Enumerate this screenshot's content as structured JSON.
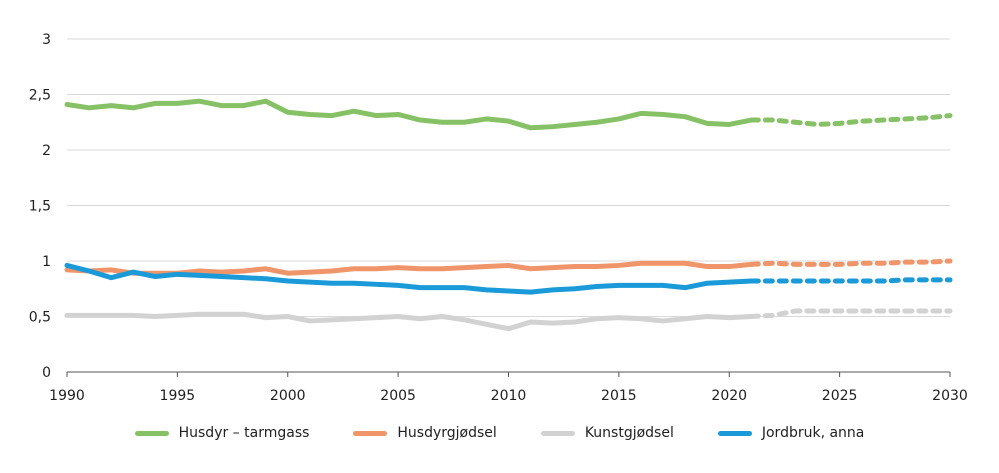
{
  "chart_data": {
    "type": "line",
    "title": "",
    "xlabel": "",
    "ylabel": "",
    "xlim": [
      1990,
      2030
    ],
    "ylim": [
      0,
      3
    ],
    "x_ticks": [
      "1990",
      "1995",
      "2000",
      "2005",
      "2010",
      "2015",
      "2020",
      "2025",
      "2030"
    ],
    "y_ticks": [
      "0",
      "0,5",
      "1",
      "1,5",
      "2",
      "2,5",
      "3"
    ],
    "grid": "horizontal",
    "legend_position": "bottom",
    "historical_years": [
      1990,
      1991,
      1992,
      1993,
      1994,
      1995,
      1996,
      1997,
      1998,
      1999,
      2000,
      2001,
      2002,
      2003,
      2004,
      2005,
      2006,
      2007,
      2008,
      2009,
      2010,
      2011,
      2012,
      2013,
      2014,
      2015,
      2016,
      2017,
      2018,
      2019,
      2020,
      2021
    ],
    "projection_years": [
      2021,
      2022,
      2023,
      2024,
      2025,
      2026,
      2027,
      2028,
      2029,
      2030
    ],
    "series": [
      {
        "name": "Husdyr – tarmgass",
        "color": "#86c166",
        "values": [
          2.41,
          2.38,
          2.4,
          2.38,
          2.42,
          2.42,
          2.44,
          2.4,
          2.4,
          2.44,
          2.34,
          2.32,
          2.31,
          2.35,
          2.31,
          2.32,
          2.27,
          2.25,
          2.25,
          2.28,
          2.26,
          2.2,
          2.21,
          2.23,
          2.25,
          2.28,
          2.33,
          2.32,
          2.3,
          2.24,
          2.23,
          2.27
        ],
        "projection": [
          2.27,
          2.27,
          2.25,
          2.23,
          2.24,
          2.26,
          2.27,
          2.28,
          2.29,
          2.31
        ]
      },
      {
        "name": "Husdyrgjødsel",
        "color": "#f0956a",
        "values": [
          0.92,
          0.91,
          0.92,
          0.89,
          0.89,
          0.89,
          0.91,
          0.9,
          0.91,
          0.93,
          0.89,
          0.9,
          0.91,
          0.93,
          0.93,
          0.94,
          0.93,
          0.93,
          0.94,
          0.95,
          0.96,
          0.93,
          0.94,
          0.95,
          0.95,
          0.96,
          0.98,
          0.98,
          0.98,
          0.95,
          0.95,
          0.97
        ],
        "projection": [
          0.97,
          0.98,
          0.97,
          0.97,
          0.97,
          0.98,
          0.98,
          0.99,
          0.99,
          1.0
        ]
      },
      {
        "name": "Kunstgjødsel",
        "color": "#d2d2d2",
        "values": [
          0.51,
          0.51,
          0.51,
          0.51,
          0.5,
          0.51,
          0.52,
          0.52,
          0.52,
          0.49,
          0.5,
          0.46,
          0.47,
          0.48,
          0.49,
          0.5,
          0.48,
          0.5,
          0.47,
          0.43,
          0.39,
          0.45,
          0.44,
          0.45,
          0.48,
          0.49,
          0.48,
          0.46,
          0.48,
          0.5,
          0.49,
          0.5
        ],
        "projection": [
          0.5,
          0.51,
          0.55,
          0.55,
          0.55,
          0.55,
          0.55,
          0.55,
          0.55,
          0.55
        ]
      },
      {
        "name": "Jordbruk, anna",
        "color": "#1a9ad9",
        "values": [
          0.96,
          0.91,
          0.85,
          0.9,
          0.86,
          0.88,
          0.87,
          0.86,
          0.85,
          0.84,
          0.82,
          0.81,
          0.8,
          0.8,
          0.79,
          0.78,
          0.76,
          0.76,
          0.76,
          0.74,
          0.73,
          0.72,
          0.74,
          0.75,
          0.77,
          0.78,
          0.78,
          0.78,
          0.76,
          0.8,
          0.81,
          0.82
        ],
        "projection": [
          0.82,
          0.82,
          0.82,
          0.82,
          0.82,
          0.82,
          0.82,
          0.83,
          0.83,
          0.83
        ]
      }
    ]
  }
}
